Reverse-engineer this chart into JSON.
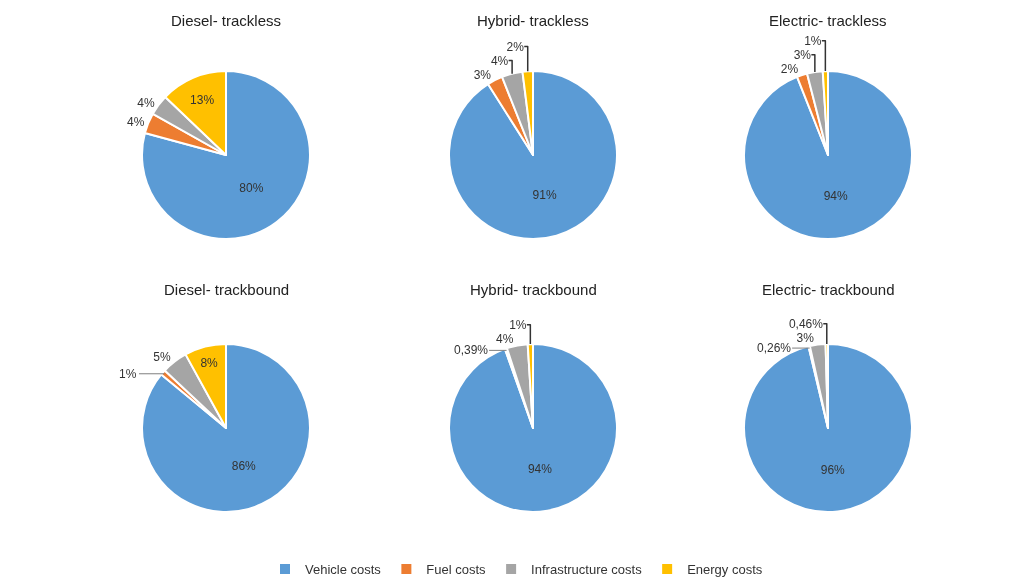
{
  "chart_data": [
    {
      "type": "pie",
      "title": "Diesel- trackless",
      "categories": [
        "Vehicle costs",
        "Fuel costs",
        "Infrastructure costs",
        "Energy costs"
      ],
      "values": [
        80,
        4,
        4,
        13
      ],
      "value_labels": [
        "80%",
        "4%",
        "4%",
        "13%"
      ],
      "colors": [
        "#5b9bd5",
        "#ed7d31",
        "#a5a5a5",
        "#ffc000"
      ],
      "legend": "bottom"
    },
    {
      "type": "pie",
      "title": "Hybrid- trackless",
      "categories": [
        null,
        null,
        null,
        null
      ],
      "values": [
        91,
        3,
        4,
        2
      ],
      "value_labels": [
        "91%",
        "3%",
        "4%",
        "2%"
      ],
      "colors": [
        "#5b9bd5",
        "#ed7d31",
        "#a5a5a5",
        "#ffc000"
      ]
    },
    {
      "type": "pie",
      "title": "Electric- trackless",
      "categories": [
        null,
        null,
        null,
        null
      ],
      "values": [
        94,
        2,
        3,
        1
      ],
      "value_labels": [
        "94%",
        "2%",
        "3%",
        "1%"
      ],
      "colors": [
        "#5b9bd5",
        "#ed7d31",
        "#a5a5a5",
        "#ffc000"
      ]
    },
    {
      "type": "pie",
      "title": "Diesel- trackbound",
      "categories": [
        null,
        null,
        null,
        null
      ],
      "values": [
        86,
        1,
        5,
        8
      ],
      "value_labels": [
        "86%",
        "1%",
        "5%",
        "8%"
      ],
      "colors": [
        "#5b9bd5",
        "#ed7d31",
        "#a5a5a5",
        "#ffc000"
      ]
    },
    {
      "type": "pie",
      "title": "Hybrid- trackbound",
      "categories": [
        null,
        null,
        null,
        null
      ],
      "values": [
        94,
        0.39,
        4,
        1
      ],
      "value_labels": [
        "94%",
        "0,39%",
        "4%",
        "1%"
      ],
      "colors": [
        "#5b9bd5",
        "#ed7d31",
        "#a5a5a5",
        "#ffc000"
      ]
    },
    {
      "type": "pie",
      "title": "Electric- trackbound",
      "categories": [
        null,
        null,
        null,
        null
      ],
      "values": [
        96,
        0.26,
        3,
        0.46
      ],
      "value_labels": [
        "96%",
        "0,26%",
        "3%",
        "0,46%"
      ],
      "colors": [
        "#5b9bd5",
        "#ed7d31",
        "#a5a5a5",
        "#ffc000"
      ]
    }
  ]
}
